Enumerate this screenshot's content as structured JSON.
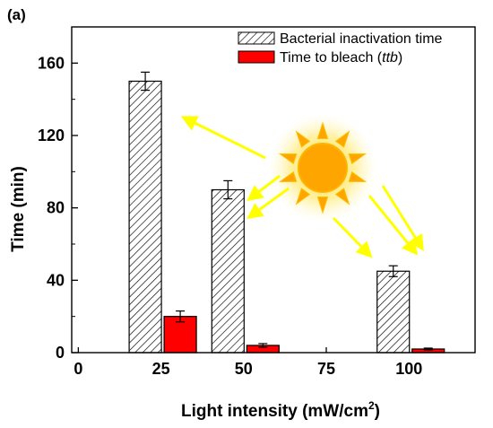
{
  "chart_data": {
    "type": "bar",
    "panel_label": "(a)",
    "xlabel": "Light intensity  (mW/cm",
    "xlabel_sup": "2",
    "xlabel_close": ")",
    "ylabel": "Time (min)",
    "x_ticks": [
      "0",
      "25",
      "50",
      "75",
      "100"
    ],
    "y_ticks": [
      "0",
      "40",
      "80",
      "120",
      "160"
    ],
    "ylim": [
      0,
      180
    ],
    "categories": [
      "25",
      "50",
      "100"
    ],
    "series": [
      {
        "name": "Bacterial inactivation time",
        "values": [
          150,
          90,
          45
        ],
        "errors": [
          5,
          5,
          3
        ],
        "pattern": "hatched",
        "color": "#000000"
      },
      {
        "name": "Time to bleach (",
        "name_italic": "ttb",
        "name_suffix": ")",
        "values": [
          20,
          4,
          2
        ],
        "errors": [
          3,
          1,
          0.5
        ],
        "color": "#ff0000"
      }
    ],
    "legend_position": "top-right",
    "decoration": "sun-icon",
    "colors": {
      "sun": "#ffa500",
      "rays": "#ffff00",
      "arrows": "#ffff00"
    }
  }
}
